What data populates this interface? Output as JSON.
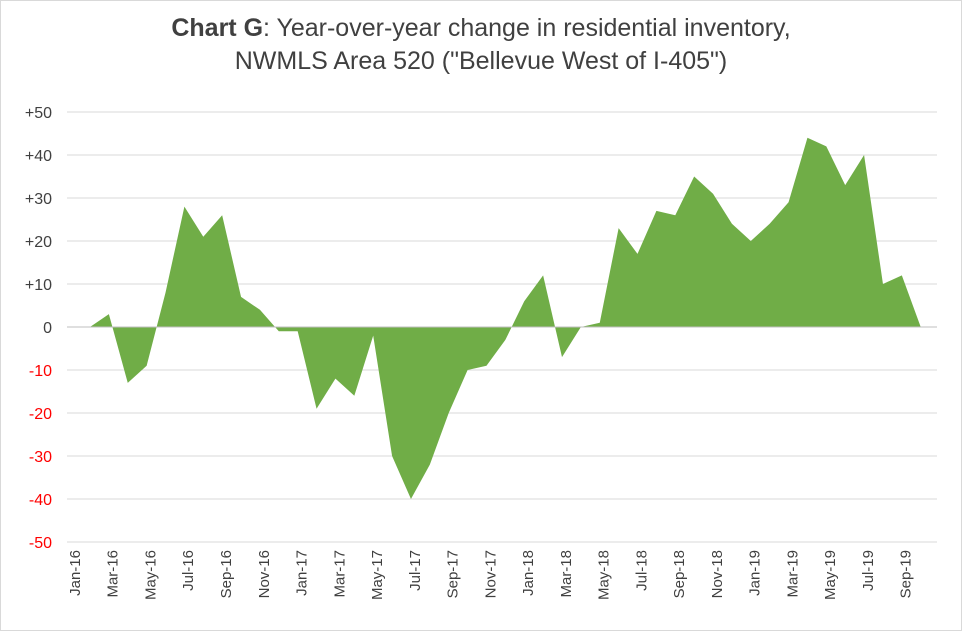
{
  "title_bold": "Chart G",
  "title_rest": ": Year-over-year change in residential inventory,",
  "title_line2": "NWMLS Area 520 (\"Bellevue West of I-405\")",
  "colors": {
    "area": "#70AD47",
    "grid": "#d9d9d9",
    "positive_tick": "#404040",
    "negative_tick": "#ff0000"
  },
  "chart_data": {
    "type": "area",
    "title": "Chart G: Year-over-year change in residential inventory, NWMLS Area 520 (\"Bellevue West of I-405\")",
    "xlabel": "",
    "ylabel": "",
    "ylim": [
      -50,
      50
    ],
    "grid": true,
    "legend": "none",
    "y_ticks": [
      50,
      40,
      30,
      20,
      10,
      0,
      -10,
      -20,
      -30,
      -40,
      -50
    ],
    "y_tick_labels": [
      "+50",
      "+40",
      "+30",
      "+20",
      "+10",
      "0",
      "-10",
      "-20",
      "-30",
      "-40",
      "-50"
    ],
    "x_tick_labels": [
      "Jan-16",
      "Mar-16",
      "May-16",
      "Jul-16",
      "Sep-16",
      "Nov-16",
      "Jan-17",
      "Mar-17",
      "May-17",
      "Jul-17",
      "Sep-17",
      "Nov-17",
      "Jan-18",
      "Mar-18",
      "May-18",
      "Jul-18",
      "Sep-18",
      "Nov-18",
      "Jan-19",
      "Mar-19",
      "May-19",
      "Jul-19",
      "Sep-19"
    ],
    "x": [
      "Jan-16",
      "Feb-16",
      "Mar-16",
      "Apr-16",
      "May-16",
      "Jun-16",
      "Jul-16",
      "Aug-16",
      "Sep-16",
      "Oct-16",
      "Nov-16",
      "Dec-16",
      "Jan-17",
      "Feb-17",
      "Mar-17",
      "Apr-17",
      "May-17",
      "Jun-17",
      "Jul-17",
      "Aug-17",
      "Sep-17",
      "Oct-17",
      "Nov-17",
      "Dec-17",
      "Jan-18",
      "Feb-18",
      "Mar-18",
      "Apr-18",
      "May-18",
      "Jun-18",
      "Jul-18",
      "Aug-18",
      "Sep-18",
      "Oct-18",
      "Nov-18",
      "Dec-18",
      "Jan-19",
      "Feb-19",
      "Mar-19",
      "Apr-19",
      "May-19",
      "Jun-19",
      "Jul-19",
      "Aug-19",
      "Sep-19",
      "Oct-19"
    ],
    "values": [
      0,
      3,
      -13,
      -9,
      8,
      28,
      21,
      26,
      7,
      4,
      -1,
      -1,
      -19,
      -12,
      -16,
      -2,
      -30,
      -40,
      -32,
      -20,
      -10,
      -9,
      -3,
      6,
      12,
      -7,
      0,
      1,
      23,
      17,
      27,
      26,
      35,
      31,
      24,
      20,
      24,
      29,
      44,
      42,
      33,
      40,
      10,
      12,
      0,
      0
    ]
  }
}
